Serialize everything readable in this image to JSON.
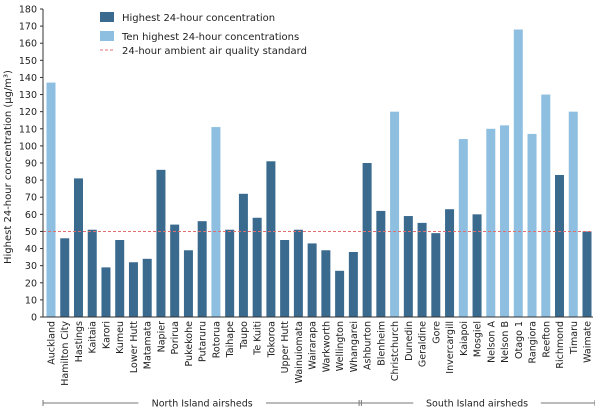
{
  "chart_data": {
    "type": "bar",
    "ylabel": "Highest 24-hour concentration (µg/m³)",
    "ylim": [
      0,
      180
    ],
    "yticks": [
      0,
      10,
      20,
      30,
      40,
      50,
      60,
      70,
      80,
      90,
      100,
      110,
      120,
      130,
      140,
      150,
      160,
      170,
      180
    ],
    "grid": false,
    "legend_position": "top-left",
    "legend": {
      "highest": "Highest 24-hour concentration",
      "ten_highest": "Ten highest 24-hour concentrations",
      "standard": "24-hour ambient air quality standard"
    },
    "standard_value": 50,
    "colors": {
      "highest": "#3a6a8e",
      "ten_highest": "#8ebfe0",
      "standard": "#e07070"
    },
    "categories": [
      "Auckland",
      "Hamilton City",
      "Hastings",
      "Kaitaia",
      "Karori",
      "Kumeu",
      "Lower Hutt",
      "Matamata",
      "Napier",
      "Porirua",
      "Pukekohe",
      "Putaruru",
      "Rotorua",
      "Taihape",
      "Taupo",
      "Te Kuiti",
      "Tokoroa",
      "Upper Hutt",
      "Wainuiomata",
      "Wairarapa",
      "Warkworth",
      "Wellington",
      "Whangarei",
      "Ashburton",
      "Blenheim",
      "Christchurch",
      "Dunedin",
      "Geraldine",
      "Gore",
      "Invercargill",
      "Kaiapoi",
      "Mosgiel",
      "Nelson A",
      "Nelson B",
      "Otago 1",
      "Rangiora",
      "Reefton",
      "Richmond",
      "Timaru",
      "Waimate"
    ],
    "values": [
      137,
      46,
      81,
      51,
      29,
      45,
      32,
      34,
      86,
      54,
      39,
      56,
      111,
      51,
      72,
      58,
      91,
      45,
      51,
      43,
      39,
      27,
      38,
      90,
      62,
      120,
      59,
      55,
      49,
      63,
      104,
      60,
      110,
      112,
      168,
      107,
      130,
      83,
      120,
      50
    ],
    "series_type": [
      "ten_highest",
      "highest",
      "highest",
      "highest",
      "highest",
      "highest",
      "highest",
      "highest",
      "highest",
      "highest",
      "highest",
      "highest",
      "ten_highest",
      "highest",
      "highest",
      "highest",
      "highest",
      "highest",
      "highest",
      "highest",
      "highest",
      "highest",
      "highest",
      "highest",
      "highest",
      "ten_highest",
      "highest",
      "highest",
      "highest",
      "highest",
      "ten_highest",
      "highest",
      "ten_highest",
      "ten_highest",
      "ten_highest",
      "ten_highest",
      "ten_highest",
      "highest",
      "ten_highest",
      "highest"
    ],
    "groups": [
      {
        "label": "North Island airsheds",
        "from": 0,
        "to": 22
      },
      {
        "label": "South Island airsheds",
        "from": 23,
        "to": 39
      }
    ]
  }
}
